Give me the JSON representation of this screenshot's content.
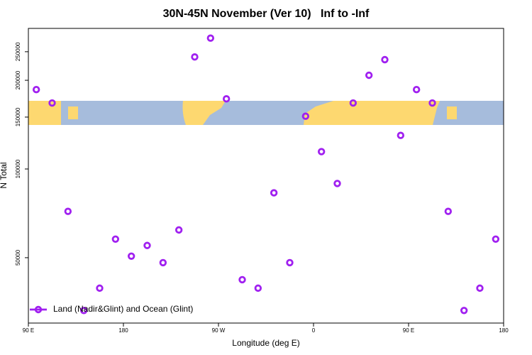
{
  "chart_data": {
    "type": "scatter",
    "title": "30N-45N November (Ver 10)   Inf to -Inf",
    "x_label": "Longitude (deg E)",
    "y_label": "N Total",
    "log_y": true,
    "legend_position": "bottom-left",
    "xlim": [
      90,
      540
    ],
    "ylim": [
      30000,
      300000
    ],
    "xticks": [
      {
        "value": 90,
        "label": "90 E"
      },
      {
        "value": 180,
        "label": "180"
      },
      {
        "value": 270,
        "label": "90 W"
      },
      {
        "value": 360,
        "label": "0"
      },
      {
        "value": 450,
        "label": "90 E"
      },
      {
        "value": 540,
        "label": "180"
      }
    ],
    "yticks": [
      50000,
      100000,
      150000,
      200000,
      250000
    ],
    "series": [
      {
        "name": "Land (Nadir&Glint) and Ocean (Glint)",
        "color": "#a020f0",
        "x": [
          97.5,
          112.5,
          127.5,
          142.5,
          157.5,
          172.5,
          187.5,
          202.5,
          217.5,
          232.5,
          247.5,
          262.5,
          277.5,
          292.5,
          307.5,
          322.5,
          337.5,
          352.5,
          367.5,
          382.5,
          397.5,
          412.5,
          427.5,
          442.5,
          457.5,
          472.5,
          487.5,
          502.5,
          517.5,
          532.5
        ],
        "values": [
          186000,
          167500,
          71800,
          33100,
          39400,
          57800,
          50600,
          55000,
          48100,
          62100,
          240000,
          278000,
          173000,
          42100,
          39400,
          83000,
          48100,
          151000,
          114500,
          89300,
          167500,
          208000,
          235000,
          130000,
          186000,
          167500,
          71800,
          33100,
          39400,
          57800
        ]
      }
    ]
  }
}
